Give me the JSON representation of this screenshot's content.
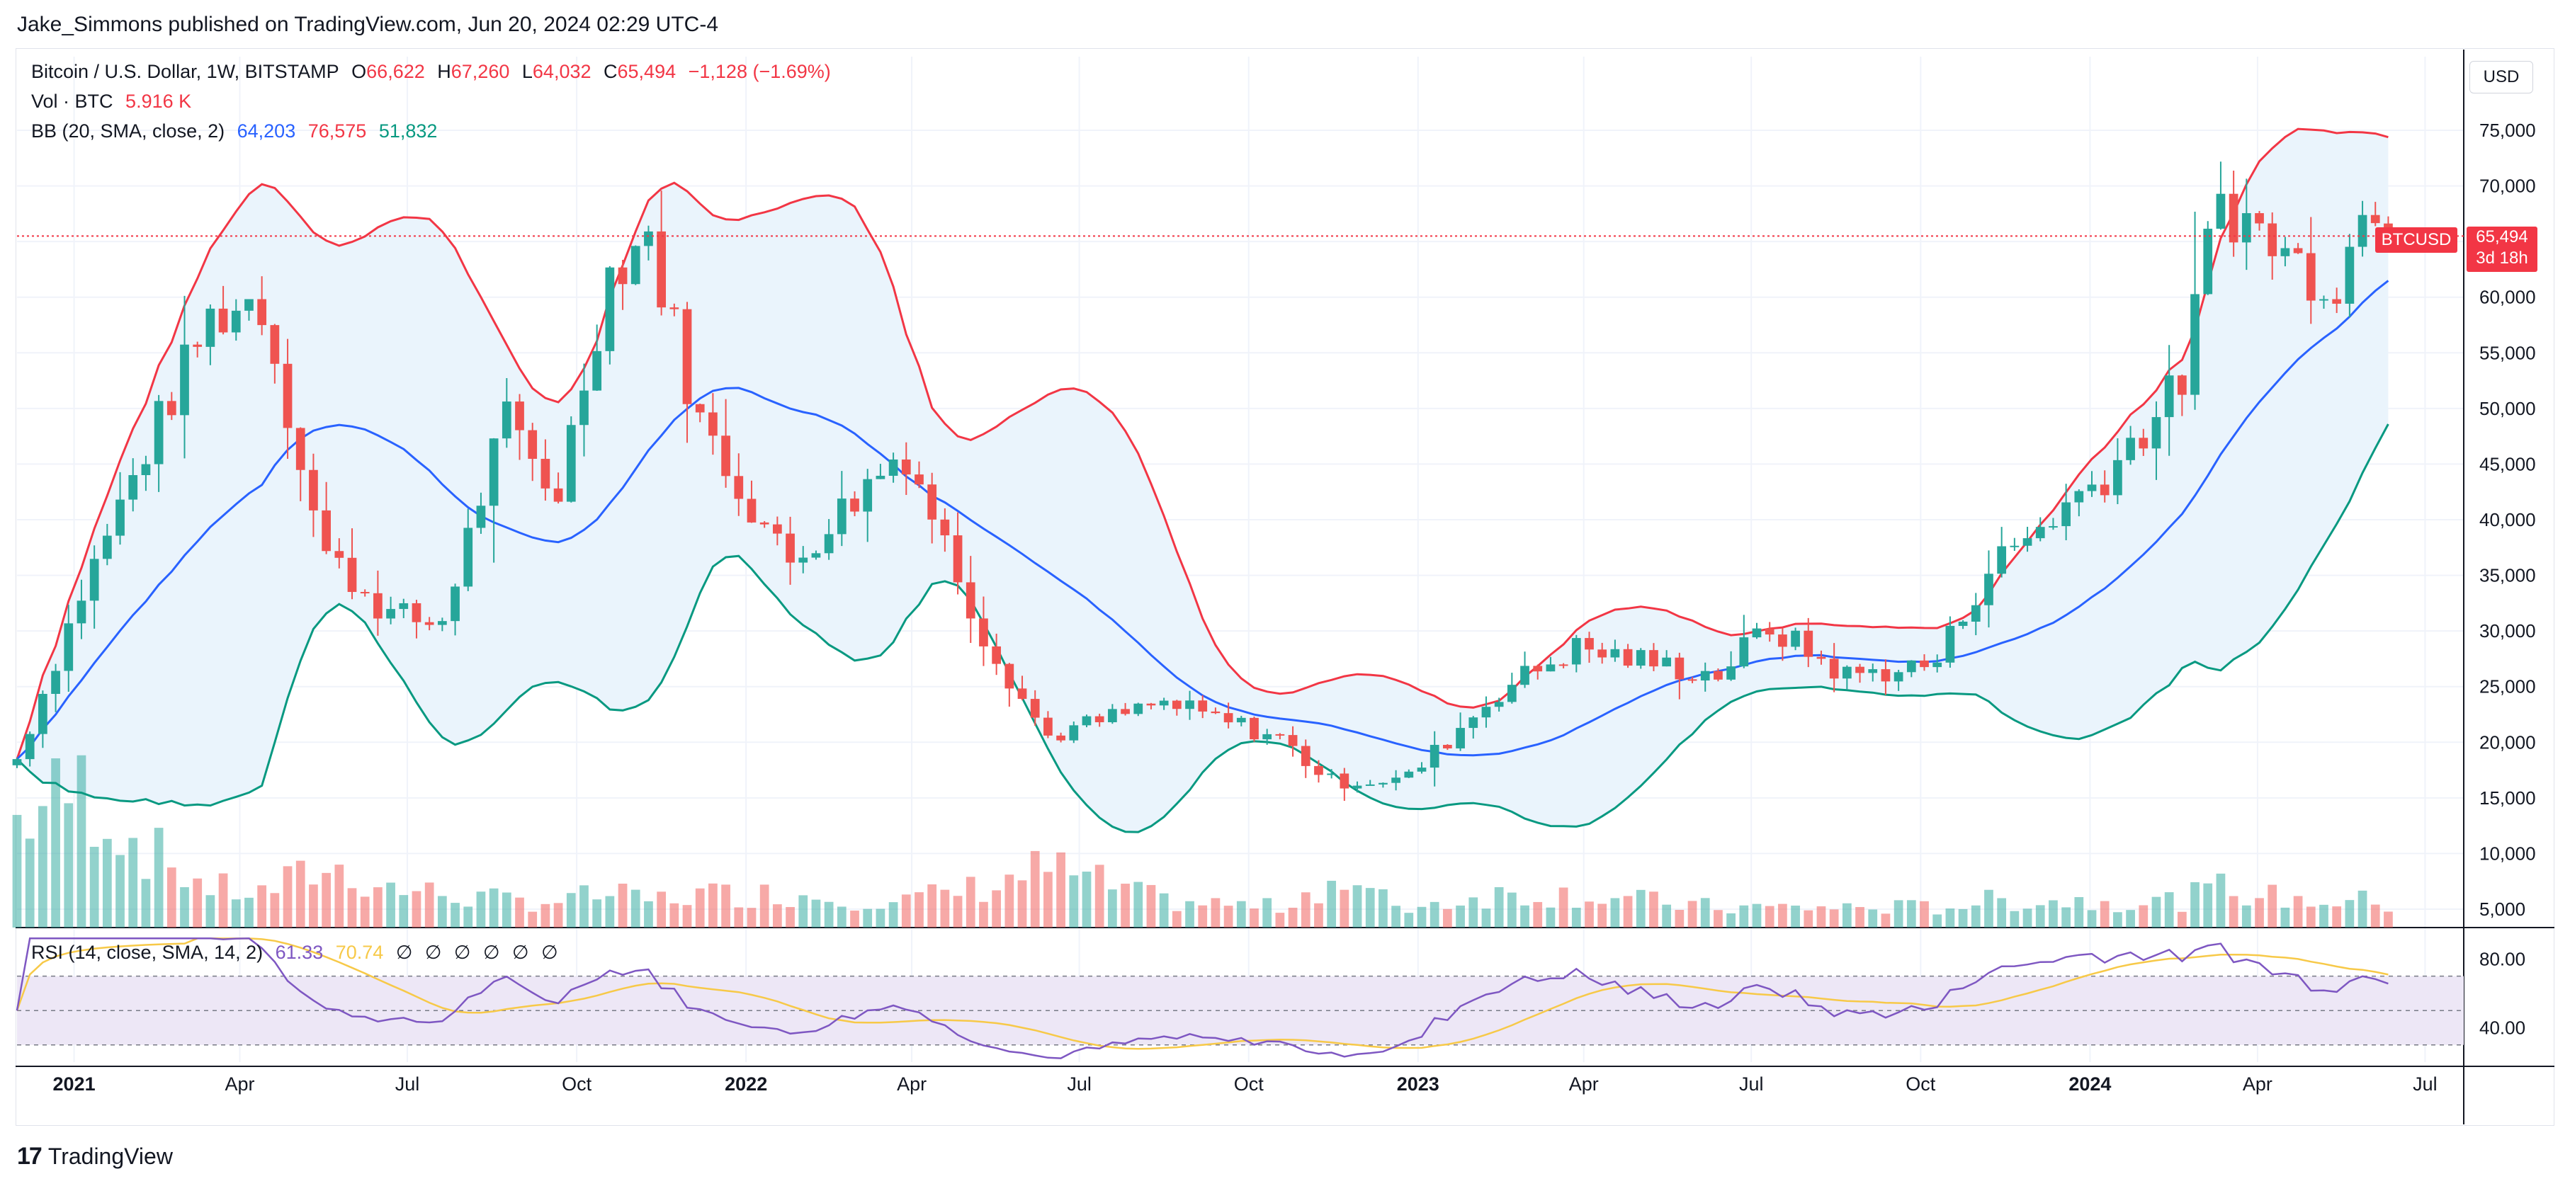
{
  "header": {
    "publisher_line": "Jake_Simmons published on TradingView.com, Jun 20, 2024 02:29 UTC-4"
  },
  "legend": {
    "symbol": "Bitcoin / U.S. Dollar, 1W, BITSTAMP",
    "open_label": "O",
    "open": "66,622",
    "high_label": "H",
    "high": "67,260",
    "low_label": "L",
    "low": "64,032",
    "close_label": "C",
    "close": "65,494",
    "change": "−1,128 (−1.69%)",
    "vol_label": "Vol · BTC",
    "vol_value": "5.916 K",
    "bb_label": "BB (20, SMA, close, 2)",
    "bb_basis": "64,203",
    "bb_upper": "76,575",
    "bb_lower": "51,832",
    "rsi_label": "RSI (14, close, SMA, 14, 2)",
    "rsi_value": "61.33",
    "rsi_ma": "70.74",
    "rsi_empty": [
      "∅",
      "∅",
      "∅",
      "∅",
      "∅",
      "∅"
    ]
  },
  "price_axis": {
    "currency": "USD",
    "ticks": [
      "75,000",
      "70,000",
      "65,000",
      "60,000",
      "55,000",
      "50,000",
      "45,000",
      "40,000",
      "35,000",
      "30,000",
      "25,000",
      "20,000",
      "15,000",
      "10,000",
      "5,000"
    ],
    "rsi_ticks": [
      "80.00",
      "40.00"
    ]
  },
  "last_price": {
    "symbol": "BTCUSD",
    "value": "65,494",
    "countdown": "3d 18h"
  },
  "time_axis": [
    "2021",
    "Apr",
    "Jul",
    "Oct",
    "2022",
    "Apr",
    "Jul",
    "Oct",
    "2023",
    "Apr",
    "Jul",
    "Oct",
    "2024",
    "Apr",
    "Jul"
  ],
  "footer": {
    "brand": "TradingView"
  },
  "colors": {
    "up": "#26a69a",
    "down": "#ef5350",
    "bb_basis": "#2962ff",
    "bb_upper": "#f23645",
    "bb_lower": "#089981",
    "bb_fill": "#eaf3fb",
    "rsi": "#7e57c2",
    "rsi_ma": "#f7c948",
    "rsi_band": "#ede7f6"
  },
  "chart_data": {
    "type": "candlestick",
    "title": "Bitcoin / U.S. Dollar, 1W, BITSTAMP",
    "y_range": [
      3000,
      80000
    ],
    "rsi_range": [
      20,
      95
    ],
    "anchors": [
      {
        "date": "2020-12-01",
        "close": 18500,
        "volume": 16
      },
      {
        "date": "2021-01-04",
        "close": 33000,
        "volume": 21
      },
      {
        "date": "2021-02-08",
        "close": 46000,
        "volume": 12
      },
      {
        "date": "2021-03-15",
        "close": 58000,
        "volume": 6
      },
      {
        "date": "2021-04-12",
        "close": 60000,
        "volume": 5
      },
      {
        "date": "2021-05-17",
        "close": 37000,
        "volume": 9
      },
      {
        "date": "2021-06-21",
        "close": 31500,
        "volume": 6
      },
      {
        "date": "2021-07-19",
        "close": 30500,
        "volume": 5
      },
      {
        "date": "2021-08-23",
        "close": 49000,
        "volume": 4
      },
      {
        "date": "2021-09-20",
        "close": 42000,
        "volume": 4
      },
      {
        "date": "2021-10-18",
        "close": 62000,
        "volume": 5
      },
      {
        "date": "2021-11-08",
        "close": 66000,
        "volume": 4
      },
      {
        "date": "2021-12-06",
        "close": 49000,
        "volume": 5
      },
      {
        "date": "2022-01-24",
        "close": 36000,
        "volume": 5
      },
      {
        "date": "2022-03-28",
        "close": 46500,
        "volume": 4
      },
      {
        "date": "2022-05-09",
        "close": 30000,
        "volume": 6
      },
      {
        "date": "2022-06-13",
        "close": 20500,
        "volume": 9
      },
      {
        "date": "2022-08-15",
        "close": 23500,
        "volume": 4
      },
      {
        "date": "2022-10-17",
        "close": 20500,
        "volume": 3
      },
      {
        "date": "2022-11-14",
        "close": 16500,
        "volume": 7
      },
      {
        "date": "2022-12-26",
        "close": 16700,
        "volume": 3
      },
      {
        "date": "2023-02-13",
        "close": 24500,
        "volume": 5
      },
      {
        "date": "2023-03-27",
        "close": 28500,
        "volume": 5
      },
      {
        "date": "2023-06-12",
        "close": 26000,
        "volume": 3
      },
      {
        "date": "2023-07-10",
        "close": 30400,
        "volume": 3
      },
      {
        "date": "2023-08-21",
        "close": 26000,
        "volume": 3
      },
      {
        "date": "2023-10-09",
        "close": 27000,
        "volume": 3
      },
      {
        "date": "2023-11-06",
        "close": 35500,
        "volume": 4
      },
      {
        "date": "2024-01-08",
        "close": 44000,
        "volume": 4
      },
      {
        "date": "2024-02-19",
        "close": 52000,
        "volume": 4
      },
      {
        "date": "2024-03-11",
        "close": 69000,
        "volume": 6
      },
      {
        "date": "2024-04-22",
        "close": 63000,
        "volume": 4
      },
      {
        "date": "2024-05-13",
        "close": 61500,
        "volume": 4
      },
      {
        "date": "2024-06-03",
        "close": 69500,
        "volume": 4
      },
      {
        "date": "2024-06-17",
        "close": 65494,
        "volume": 3
      }
    ],
    "last_bar": {
      "date": "2024-06-17",
      "open": 66622,
      "high": 67260,
      "low": 64032,
      "close": 65494,
      "change": -1128,
      "change_pct": -1.69,
      "volume_k_btc": 5.916
    },
    "bollinger": {
      "length": 20,
      "stddev": 2,
      "basis": 64203,
      "upper": 76575,
      "lower": 51832
    },
    "rsi": {
      "length": 14,
      "value": 61.33,
      "ma": 70.74,
      "bands": [
        70,
        50,
        30
      ]
    },
    "grid": true,
    "legend_position": "top-left"
  }
}
